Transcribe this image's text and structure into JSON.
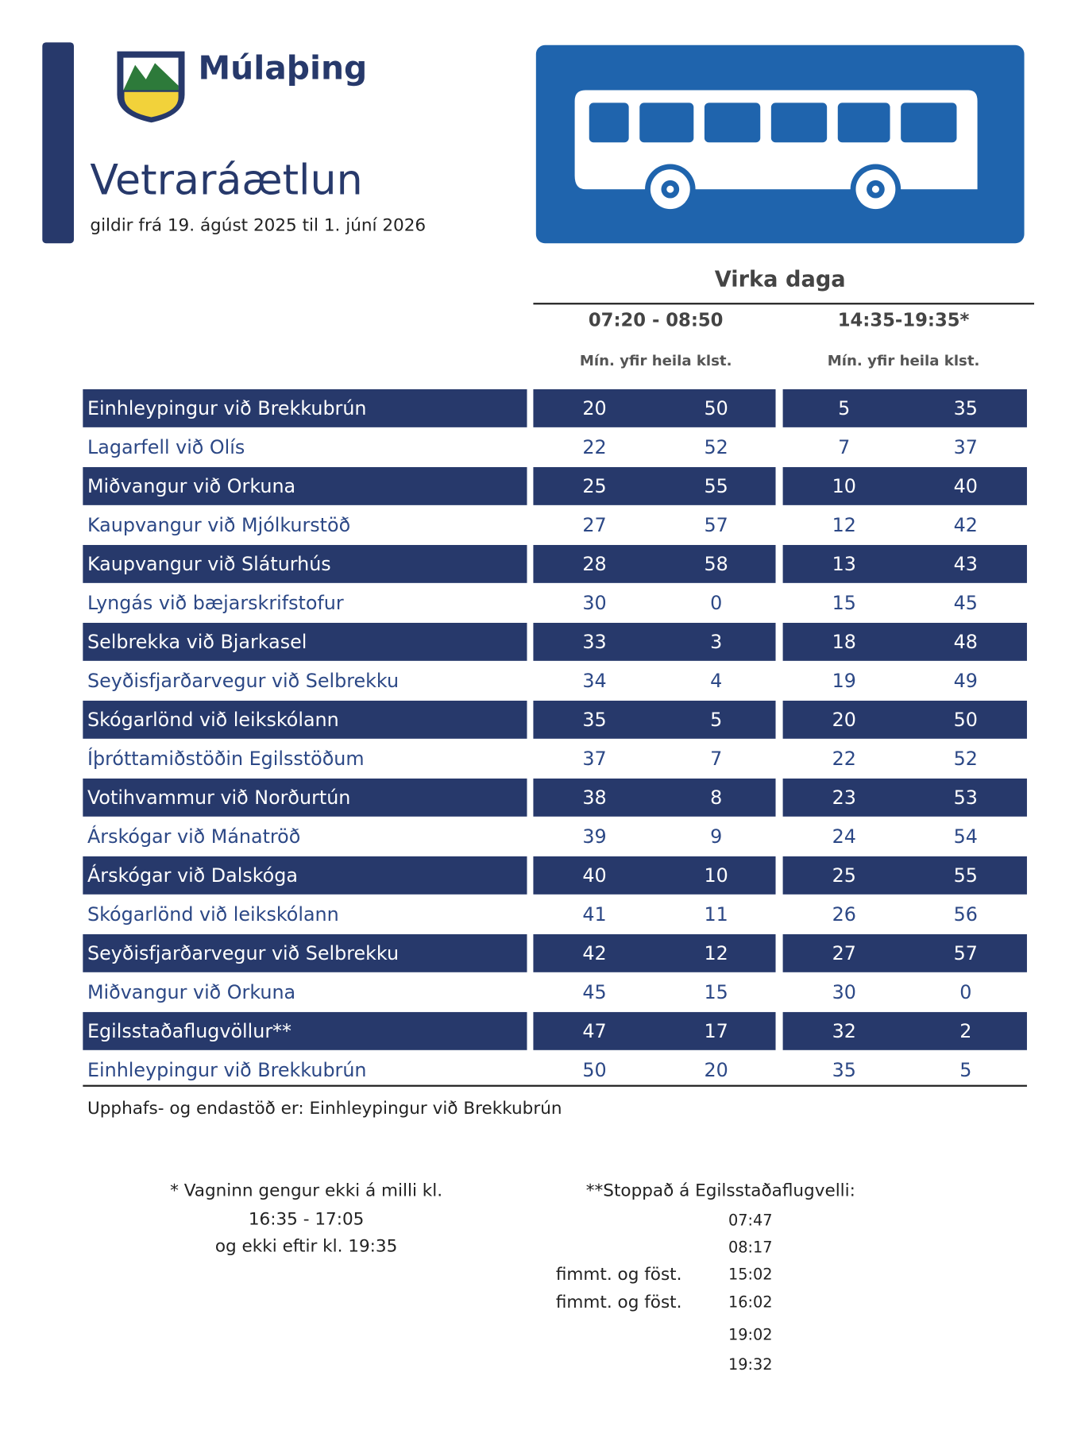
{
  "header": {
    "brand": "Múlaþing",
    "title": "Vetraráætlun",
    "subtitle": "gildir frá 19. ágúst 2025 til 1. júní 2026"
  },
  "table": {
    "group_title": "Virka daga",
    "periods": [
      "07:20 - 08:50",
      "14:35-19:35*"
    ],
    "subheaders": [
      "Mín. yfir heila klst.",
      "Mín. yfir heila  klst."
    ],
    "rows": [
      [
        "Einhleypingur við Brekkubrún",
        20,
        50,
        5,
        35
      ],
      [
        "Lagarfell við Olís",
        22,
        52,
        7,
        37
      ],
      [
        "Miðvangur við Orkuna",
        25,
        55,
        10,
        40
      ],
      [
        "Kaupvangur við Mjólkurstöð",
        27,
        57,
        12,
        42
      ],
      [
        "Kaupvangur við Sláturhús",
        28,
        58,
        13,
        43
      ],
      [
        "Lyngás við bæjarskrifstofur",
        30,
        0,
        15,
        45
      ],
      [
        "Selbrekka við Bjarkasel",
        33,
        3,
        18,
        48
      ],
      [
        "Seyðisfjarðarvegur við Selbrekku",
        34,
        4,
        19,
        49
      ],
      [
        "Skógarlönd við leikskólann",
        35,
        5,
        20,
        50
      ],
      [
        "Íþróttamiðstöðin Egilsstöðum",
        37,
        7,
        22,
        52
      ],
      [
        "Votihvammur við Norðurtún",
        38,
        8,
        23,
        53
      ],
      [
        "Árskógar við Mánatröð",
        39,
        9,
        24,
        54
      ],
      [
        "Árskógar við Dalskóga",
        40,
        10,
        25,
        55
      ],
      [
        "Skógarlönd við leikskólann",
        41,
        11,
        26,
        56
      ],
      [
        "Seyðisfjarðarvegur við Selbrekku",
        42,
        12,
        27,
        57
      ],
      [
        "Miðvangur við Orkuna",
        45,
        15,
        30,
        0
      ],
      [
        "Egilsstaðaflugvöllur**",
        47,
        17,
        32,
        2
      ],
      [
        "Einhleypingur við Brekkubrún",
        50,
        20,
        35,
        5
      ]
    ]
  },
  "footnote": "Upphafs- og endastöð er: Einhleypingur við Brekkubrún",
  "notes": {
    "left": [
      "* Vagninn gengur ekki á milli kl.",
      "16:35 - 17:05",
      "og ekki eftir kl. 19:35"
    ],
    "right_title": "**Stoppað á Egilsstaðaflugvelli:",
    "right_times": [
      {
        "time": "07:47"
      },
      {
        "time": "08:17"
      },
      {
        "days": "fimmt. og föst.",
        "time": "15:02"
      },
      {
        "days": "fimmt. og föst.",
        "time": "16:02"
      },
      {
        "time": "19:02"
      },
      {
        "time": "19:32"
      }
    ]
  }
}
